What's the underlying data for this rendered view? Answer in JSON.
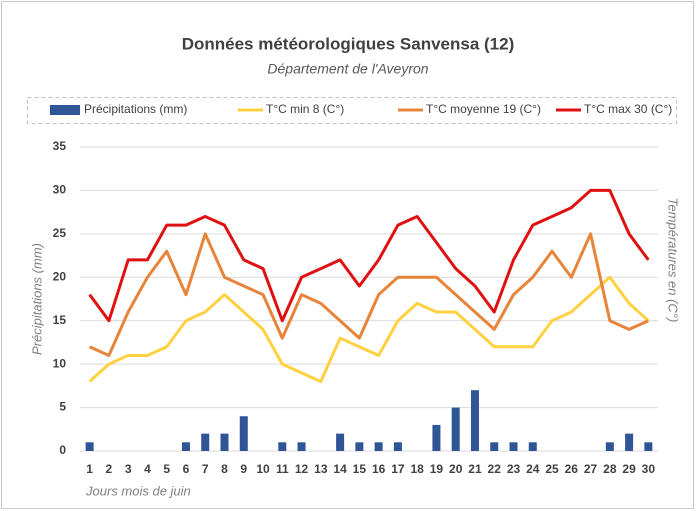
{
  "chart_data": {
    "type": "combo",
    "title": "Données météorologiques Sanvensa (12)",
    "subtitle": "Département de l'Aveyron",
    "y_label": "Précipitations (mm)",
    "y2_label": "Températures en (C°)",
    "x_label": "Jours mois de juin",
    "categories": [
      "1",
      "2",
      "3",
      "4",
      "5",
      "6",
      "7",
      "8",
      "9",
      "10",
      "11",
      "12",
      "13",
      "14",
      "15",
      "16",
      "17",
      "18",
      "19",
      "20",
      "21",
      "22",
      "23",
      "24",
      "25",
      "26",
      "27",
      "28",
      "29",
      "30"
    ],
    "series": [
      {
        "name": "Précipitations (mm)",
        "type": "bar",
        "color": "#2f5597",
        "values": [
          1,
          0,
          0,
          0,
          0,
          1,
          2,
          2,
          4,
          0,
          1,
          1,
          0,
          2,
          1,
          1,
          1,
          0,
          3,
          5,
          7,
          1,
          1,
          1,
          0,
          0,
          0,
          1,
          2,
          1
        ]
      },
      {
        "name": "T°C min 8 (C°)",
        "type": "line",
        "color": "#ffd141",
        "values": [
          8,
          10,
          11,
          11,
          12,
          15,
          16,
          18,
          16,
          14,
          10,
          9,
          8,
          13,
          12,
          11,
          15,
          17,
          16,
          16,
          14,
          12,
          12,
          12,
          15,
          16,
          18,
          20,
          17,
          15
        ]
      },
      {
        "name": "T°C moyenne 19 (C°)",
        "type": "line",
        "color": "#e8843a",
        "values": [
          12,
          11,
          16,
          20,
          23,
          18,
          25,
          20,
          19,
          18,
          13,
          18,
          17,
          15,
          13,
          18,
          20,
          20,
          20,
          18,
          16,
          14,
          18,
          20,
          23,
          20,
          25,
          15,
          14,
          15
        ]
      },
      {
        "name": "T°C max 30 (C°)",
        "type": "line",
        "color": "#e01010",
        "values": [
          18,
          15,
          22,
          22,
          26,
          26,
          27,
          26,
          22,
          21,
          15,
          20,
          21,
          22,
          19,
          22,
          26,
          27,
          24,
          21,
          19,
          16,
          22,
          26,
          27,
          28,
          30,
          30,
          25,
          22
        ]
      }
    ],
    "ylim": [
      0,
      35
    ],
    "yticks": [
      0,
      5,
      10,
      15,
      20,
      25,
      30,
      35
    ],
    "grid": true,
    "legend": "top"
  }
}
